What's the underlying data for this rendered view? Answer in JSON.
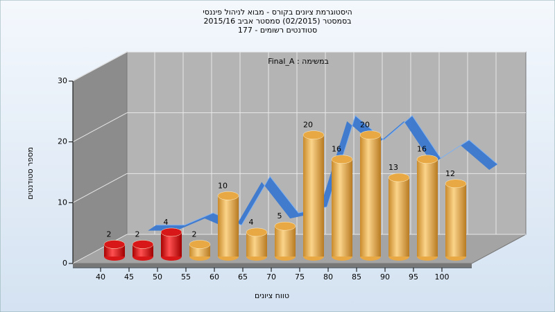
{
  "chart_data": {
    "type": "bar",
    "title": [
      "היסטוגרמת ציונים בקורס - מבוא לניהול פיננסי",
      "בסמסטר  (02/2015)  סמסטר אביב 2015/16",
      "סטודנטים רשומים - 177"
    ],
    "annotation": "במשימה : Final_A",
    "xlabel": "טווח ציונים",
    "ylabel": "מספר סטודנטים",
    "categories": [
      "40",
      "45",
      "50",
      "55",
      "60",
      "65",
      "70",
      "75",
      "80",
      "85",
      "90",
      "95",
      "100"
    ],
    "values": [
      2,
      2,
      4,
      2,
      10,
      4,
      5,
      20,
      16,
      20,
      13,
      16,
      12
    ],
    "colors": [
      "#d81818",
      "#d81818",
      "#d81818",
      "#e8a844",
      "#e8a844",
      "#e8a844",
      "#e8a844",
      "#e8a844",
      "#e8a844",
      "#e8a844",
      "#e8a844",
      "#e8a844",
      "#e8a844"
    ],
    "line_color": "#3a78d0",
    "ylim": [
      0,
      30
    ],
    "yticks": [
      0,
      10,
      20,
      30
    ],
    "grid": true
  }
}
